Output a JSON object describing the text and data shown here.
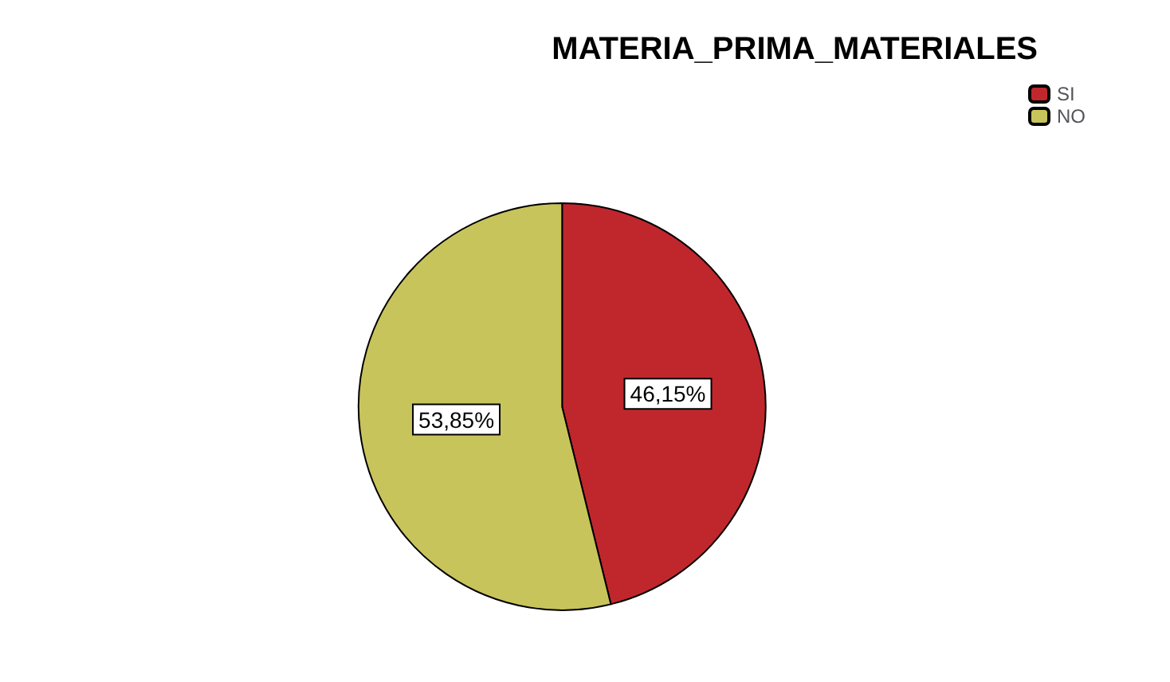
{
  "chart_data": {
    "type": "pie",
    "title": "MATERIA_PRIMA_MATERIALES",
    "categories": [
      "SI",
      "NO"
    ],
    "values": [
      46.15,
      53.85
    ],
    "value_labels": [
      "46,15%",
      "53,85%"
    ],
    "colors": [
      "#c0272d",
      "#c8c45c"
    ],
    "legend": "top right"
  }
}
